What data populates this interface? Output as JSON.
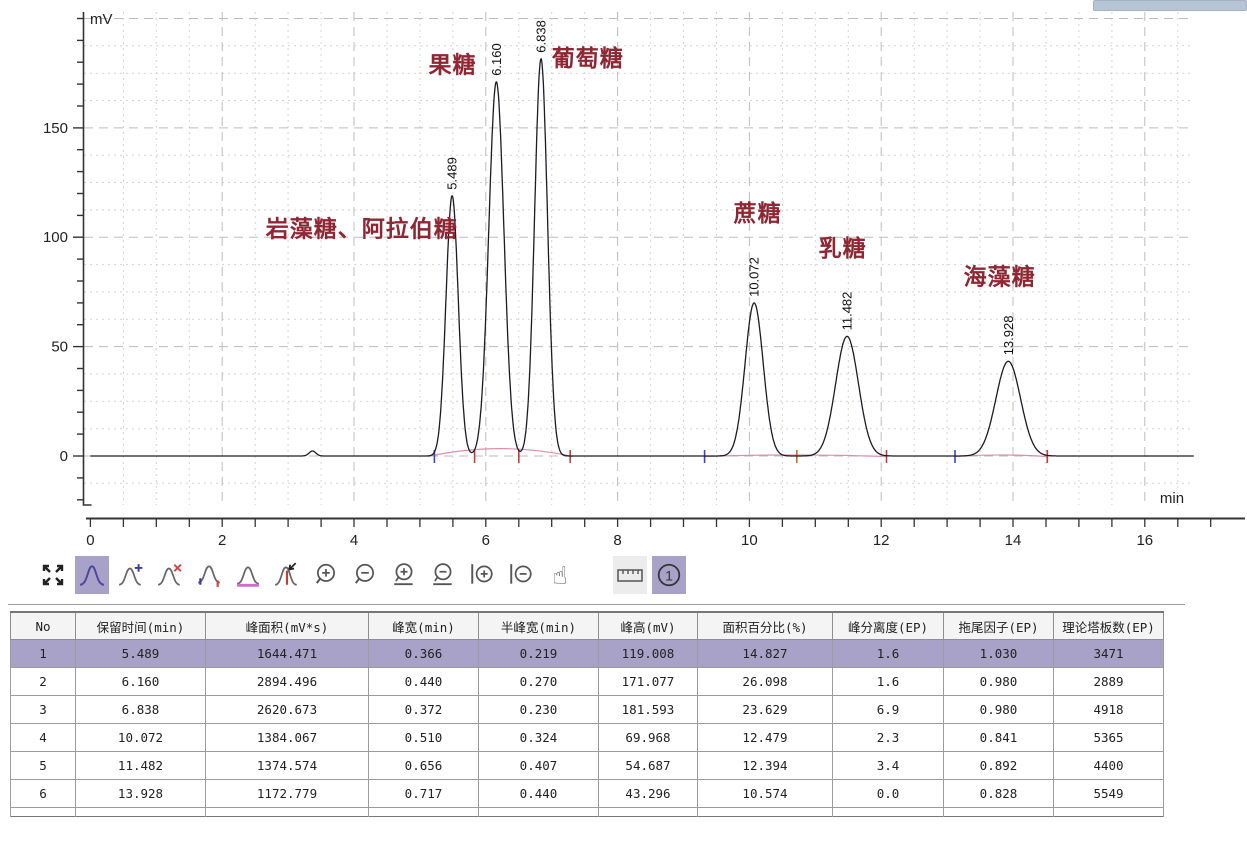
{
  "chart_data": {
    "type": "line",
    "title": "",
    "xlabel": "min",
    "ylabel": "mV",
    "x_range": [
      0,
      16.74
    ],
    "y_visible_range": [
      -22,
      203
    ],
    "x_tick_labels": [
      0,
      2,
      4,
      6,
      8,
      10,
      12,
      14,
      16
    ],
    "y_tick_labels": [
      0,
      50,
      100,
      150
    ],
    "grid": "dashed light-gray, minor 0.5 min x 12.5 mV",
    "curve_color": "#1c1c24",
    "annotation_color": "#8e2733",
    "integration_baseline_color": "#d884a0",
    "peaks": [
      {
        "rt": 5.489,
        "height_mv": 119.008,
        "fwhm_min": 0.219,
        "rt_label": "5.489"
      },
      {
        "rt": 6.16,
        "height_mv": 171.077,
        "fwhm_min": 0.27,
        "rt_label": "6.160"
      },
      {
        "rt": 6.838,
        "height_mv": 181.593,
        "fwhm_min": 0.23,
        "rt_label": "6.838"
      },
      {
        "rt": 10.072,
        "height_mv": 69.968,
        "fwhm_min": 0.324,
        "rt_label": "10.072"
      },
      {
        "rt": 11.482,
        "height_mv": 54.687,
        "fwhm_min": 0.407,
        "rt_label": "11.482"
      },
      {
        "rt": 13.928,
        "height_mv": 43.296,
        "fwhm_min": 0.44,
        "rt_label": "13.928"
      },
      {
        "rt": 3.37,
        "height_mv": 2.3,
        "fwhm_min": 0.12,
        "rt_label": ""
      }
    ],
    "annotations": [
      {
        "text": "岩藻糖、阿拉伯糖",
        "x_min": 2.66,
        "y_mv": 104
      },
      {
        "text": "果糖",
        "x_min": 5.13,
        "y_mv": 179
      },
      {
        "text": "葡萄糖",
        "x_min": 7.0,
        "y_mv": 182
      },
      {
        "text": "蔗糖",
        "x_min": 9.76,
        "y_mv": 111
      },
      {
        "text": "乳糖",
        "x_min": 11.05,
        "y_mv": 95
      },
      {
        "text": "海藻糖",
        "x_min": 13.25,
        "y_mv": 82
      }
    ],
    "peak_markers": [
      {
        "t": 5.22,
        "color": "#3948c8"
      },
      {
        "t": 5.83,
        "color": "#c83b3b"
      },
      {
        "t": 6.5,
        "color": "#c83b3b"
      },
      {
        "t": 7.28,
        "color": "#c83b3b"
      },
      {
        "t": 9.32,
        "color": "#3948c8"
      },
      {
        "t": 10.72,
        "color": "#c86a2a"
      },
      {
        "t": 12.08,
        "color": "#c83b3b"
      },
      {
        "t": 13.12,
        "color": "#3948c8"
      },
      {
        "t": 14.52,
        "color": "#c83b3b"
      }
    ],
    "baseline_segments": [
      {
        "from": 5.12,
        "to": 7.32,
        "arc_mv": 3.5
      },
      {
        "from": 9.32,
        "to": 12.08,
        "arc_mv": 0.6
      },
      {
        "from": 13.12,
        "to": 14.52,
        "arc_mv": 0.6
      }
    ]
  },
  "toolbar": {
    "channel_label": "1",
    "selected_tool": "peak-tool",
    "selected_bg": "#a9a2c8",
    "icons": [
      "fit-view",
      "peak-tool",
      "add-peak",
      "delete-peak",
      "peak-bounds",
      "baseline",
      "split-peak",
      "zoom-in",
      "zoom-out",
      "zoom-in-vertical",
      "zoom-out-vertical",
      "zoom-in-horizontal",
      "zoom-out-horizontal",
      "pan-hand",
      "ruler",
      "channel-1"
    ]
  },
  "table": {
    "selected_index": 0,
    "selected_bg": "#a9a2c8",
    "columns": [
      "No",
      "保留时间(min)",
      "峰面积(mV*s)",
      "峰宽(min)",
      "半峰宽(min)",
      "峰高(mV)",
      "面积百分比(%)",
      "峰分离度(EP)",
      "拖尾因子(EP)",
      "理论塔板数(EP)"
    ],
    "rows": [
      [
        "1",
        "5.489",
        "1644.471",
        "0.366",
        "0.219",
        "119.008",
        "14.827",
        "1.6",
        "1.030",
        "3471"
      ],
      [
        "2",
        "6.160",
        "2894.496",
        "0.440",
        "0.270",
        "171.077",
        "26.098",
        "1.6",
        "0.980",
        "2889"
      ],
      [
        "3",
        "6.838",
        "2620.673",
        "0.372",
        "0.230",
        "181.593",
        "23.629",
        "6.9",
        "0.980",
        "4918"
      ],
      [
        "4",
        "10.072",
        "1384.067",
        "0.510",
        "0.324",
        "69.968",
        "12.479",
        "2.3",
        "0.841",
        "5365"
      ],
      [
        "5",
        "11.482",
        "1374.574",
        "0.656",
        "0.407",
        "54.687",
        "12.394",
        "3.4",
        "0.892",
        "4400"
      ],
      [
        "6",
        "13.928",
        "1172.779",
        "0.717",
        "0.440",
        "43.296",
        "10.574",
        "0.0",
        "0.828",
        "5549"
      ]
    ]
  }
}
